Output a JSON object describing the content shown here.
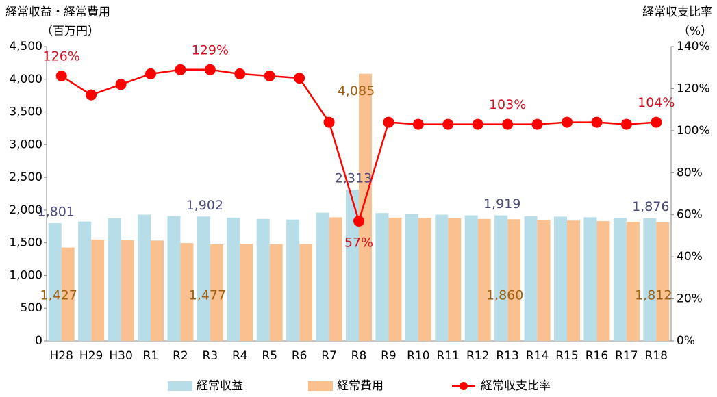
{
  "chart_data": {
    "type": "bar-line",
    "y_label": [
      "経常収益・経常費用",
      "（百万円）"
    ],
    "y2_label": [
      "経常収支比率",
      "（%）"
    ],
    "categories": [
      "H28",
      "H29",
      "H30",
      "R1",
      "R2",
      "R3",
      "R4",
      "R5",
      "R6",
      "R7",
      "R8",
      "R9",
      "R10",
      "R11",
      "R12",
      "R13",
      "R14",
      "R15",
      "R16",
      "R17",
      "R18"
    ],
    "series": [
      {
        "name": "経常収益",
        "color": "#b7dde8",
        "type": "bar",
        "values": [
          1801,
          1825,
          1875,
          1930,
          1910,
          1902,
          1885,
          1865,
          1855,
          1960,
          2313,
          1955,
          1940,
          1930,
          1920,
          1919,
          1905,
          1900,
          1890,
          1880,
          1876
        ],
        "value_labels": [
          "1,801",
          null,
          null,
          null,
          null,
          "1,902",
          null,
          null,
          null,
          null,
          "2,313",
          null,
          null,
          null,
          null,
          "1,919",
          null,
          null,
          null,
          null,
          "1,876"
        ],
        "label_color": "#4a4a7a"
      },
      {
        "name": "経常費用",
        "color": "#fac090",
        "type": "bar",
        "values": [
          1427,
          1550,
          1540,
          1535,
          1495,
          1477,
          1485,
          1480,
          1480,
          1890,
          4085,
          1885,
          1880,
          1875,
          1865,
          1860,
          1850,
          1840,
          1830,
          1820,
          1812
        ],
        "value_labels": [
          "1,427",
          null,
          null,
          null,
          null,
          "1,477",
          null,
          null,
          null,
          null,
          "4,085",
          null,
          null,
          null,
          null,
          "1,860",
          null,
          null,
          null,
          null,
          "1,812"
        ],
        "label_color": "#a0600f"
      },
      {
        "name": "経常収支比率",
        "color": "#ff0000",
        "type": "line",
        "axis": "y2",
        "values": [
          126,
          117,
          122,
          127,
          129,
          129,
          127,
          126,
          125,
          104,
          57,
          104,
          103,
          103,
          103,
          103,
          103,
          104,
          104,
          103,
          104
        ],
        "value_labels": [
          "126%",
          null,
          null,
          null,
          null,
          "129%",
          null,
          null,
          null,
          null,
          "57%",
          null,
          null,
          null,
          null,
          "103%",
          null,
          null,
          null,
          null,
          "104%"
        ],
        "label_color": "#d01020"
      }
    ],
    "ylim": [
      0,
      4500
    ],
    "yticks": [
      0,
      500,
      {
        "value": 1000,
        "label": "1,000"
      },
      {
        "value": 1500,
        "label": "1,500"
      },
      {
        "value": 2000,
        "label": "2,000"
      },
      {
        "value": 2500,
        "label": "2,500"
      },
      {
        "value": 3000,
        "label": "3,000"
      },
      {
        "value": 3500,
        "label": "3,500"
      },
      {
        "value": 4000,
        "label": "4,000"
      },
      {
        "value": 4500,
        "label": "4,500"
      }
    ],
    "y2lim": [
      0,
      140
    ],
    "y2ticks": [
      {
        "value": 0,
        "label": "0%"
      },
      {
        "value": 20,
        "label": "20%"
      },
      {
        "value": 40,
        "label": "40%"
      },
      {
        "value": 60,
        "label": "60%"
      },
      {
        "value": 80,
        "label": "80%"
      },
      {
        "value": 100,
        "label": "100%"
      },
      {
        "value": 120,
        "label": "120%"
      },
      {
        "value": 140,
        "label": "140%"
      }
    ],
    "legend": "bottom"
  }
}
